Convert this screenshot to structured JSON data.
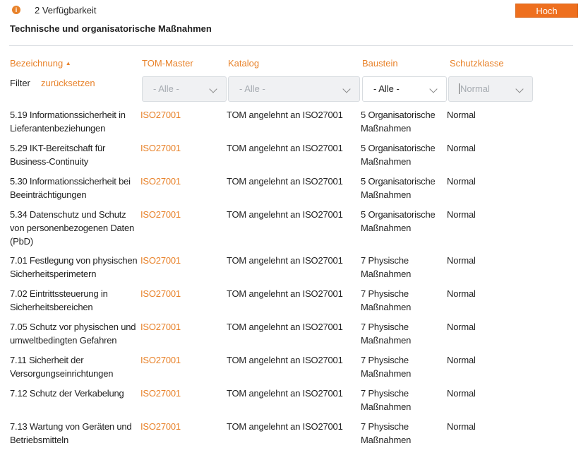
{
  "header": {
    "info_icon": "info-circle-icon",
    "category": "2 Verfügbarkeit",
    "level_badge": "Hoch",
    "title": "Technische und organisatorische Maßnahmen"
  },
  "columns": [
    "Bezeichnung",
    "TOM-Master",
    "Katalog",
    "Baustein",
    "Schutzklasse"
  ],
  "sort": {
    "column": "Bezeichnung",
    "direction": "ascending"
  },
  "filter": {
    "label": "Filter",
    "reset": "zurücksetzen",
    "tom_master": "- Alle -",
    "katalog": "- Alle -",
    "baustein": "- Alle -",
    "schutzklasse_placeholder": "Normal"
  },
  "rows": [
    {
      "name": "5.19 Informationssicherheit in Lieferantenbeziehungen",
      "master": "ISO27001",
      "katalog": "TOM angelehnt an ISO27001",
      "baustein": "5 Organisatorische Maßnahmen",
      "schutz": "Normal"
    },
    {
      "name": "5.29 IKT-Bereitschaft für Business-Continuity",
      "master": "ISO27001",
      "katalog": "TOM angelehnt an ISO27001",
      "baustein": "5 Organisatorische Maßnahmen",
      "schutz": "Normal"
    },
    {
      "name": "5.30 Informationssicherheit bei Beeinträchtigungen",
      "master": "ISO27001",
      "katalog": "TOM angelehnt an ISO27001",
      "baustein": "5 Organisatorische Maßnahmen",
      "schutz": "Normal"
    },
    {
      "name": "5.34 Datenschutz und Schutz von personenbezogenen Daten (PbD)",
      "master": "ISO27001",
      "katalog": "TOM angelehnt an ISO27001",
      "baustein": "5 Organisatorische Maßnahmen",
      "schutz": "Normal"
    },
    {
      "name": "7.01 Festlegung von physischen Sicherheitsperimetern",
      "master": "ISO27001",
      "katalog": "TOM angelehnt an ISO27001",
      "baustein": "7 Physische Maßnahmen",
      "schutz": "Normal"
    },
    {
      "name": "7.02 Eintrittssteuerung in Sicherheitsbereichen",
      "master": "ISO27001",
      "katalog": "TOM angelehnt an ISO27001",
      "baustein": "7 Physische Maßnahmen",
      "schutz": "Normal"
    },
    {
      "name": "7.05 Schutz vor physischen und umweltbedingten Gefahren",
      "master": "ISO27001",
      "katalog": "TOM angelehnt an ISO27001",
      "baustein": "7 Physische Maßnahmen",
      "schutz": "Normal"
    },
    {
      "name": "7.11 Sicherheit der Versorgungseinrichtungen",
      "master": "ISO27001",
      "katalog": "TOM angelehnt an ISO27001",
      "baustein": "7 Physische Maßnahmen",
      "schutz": "Normal"
    },
    {
      "name": "7.12 Schutz der Verkabelung",
      "master": "ISO27001",
      "katalog": "TOM angelehnt an ISO27001",
      "baustein": "7 Physische Maßnahmen",
      "schutz": "Normal"
    },
    {
      "name": "7.13 Wartung von Geräten und Betriebsmitteln",
      "master": "ISO27001",
      "katalog": "TOM angelehnt an ISO27001",
      "baustein": "7 Physische Maßnahmen",
      "schutz": "Normal"
    }
  ],
  "colors": {
    "accent": "#e8822a",
    "badge": "#ee6f1e"
  }
}
